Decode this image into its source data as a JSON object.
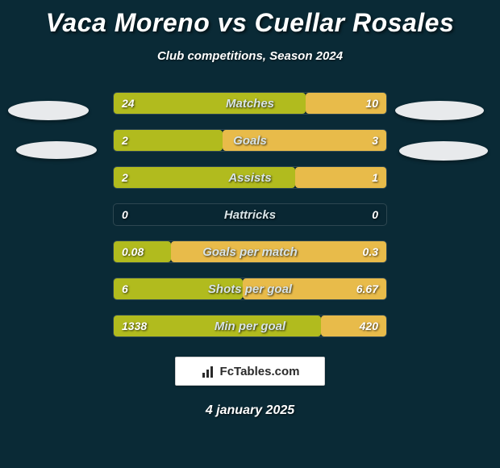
{
  "title": "Vaca Moreno vs Cuellar Rosales",
  "subtitle": "Club competitions, Season 2024",
  "date": "4 january 2025",
  "colors": {
    "left_bar": "#b1bb1e",
    "right_bar": "#e8bb4a",
    "background": "#0a2a36"
  },
  "logo": {
    "text": "FcTables.com"
  },
  "stats": [
    {
      "label": "Matches",
      "left_val": "24",
      "right_val": "10",
      "left_pct": 70.5,
      "right_pct": 29.5
    },
    {
      "label": "Goals",
      "left_val": "2",
      "right_val": "3",
      "left_pct": 40,
      "right_pct": 60
    },
    {
      "label": "Assists",
      "left_val": "2",
      "right_val": "1",
      "left_pct": 66.7,
      "right_pct": 33.3
    },
    {
      "label": "Hattricks",
      "left_val": "0",
      "right_val": "0",
      "left_pct": 0,
      "right_pct": 0
    },
    {
      "label": "Goals per match",
      "left_val": "0.08",
      "right_val": "0.3",
      "left_pct": 21,
      "right_pct": 79
    },
    {
      "label": "Shots per goal",
      "left_val": "6",
      "right_val": "6.67",
      "left_pct": 47.4,
      "right_pct": 52.6
    },
    {
      "label": "Min per goal",
      "left_val": "1338",
      "right_val": "420",
      "left_pct": 76.1,
      "right_pct": 23.9
    }
  ]
}
